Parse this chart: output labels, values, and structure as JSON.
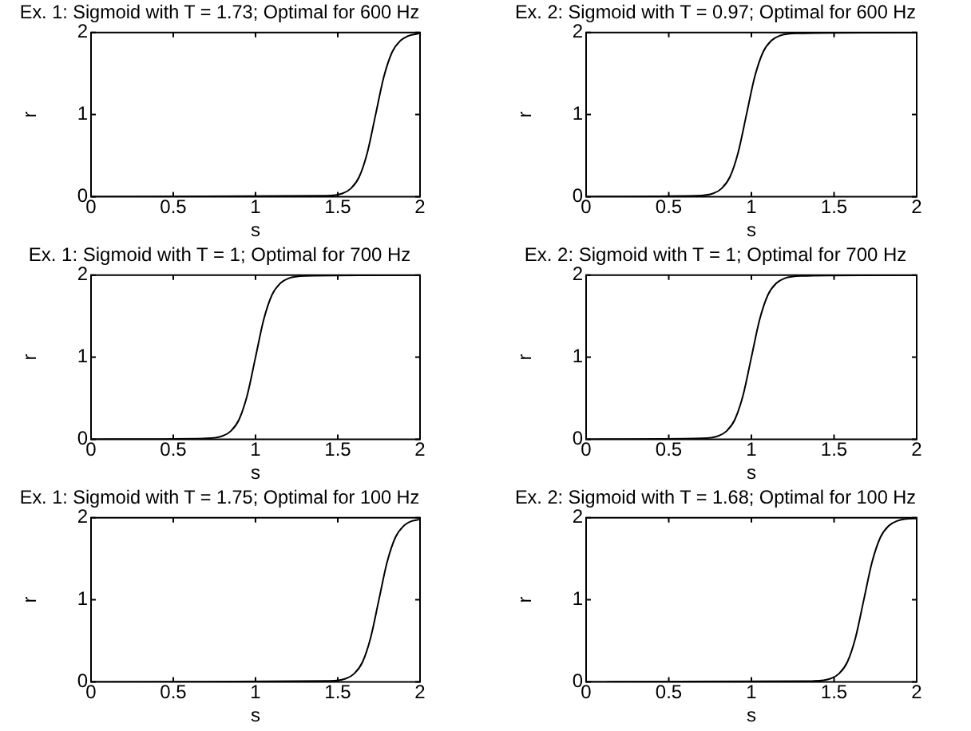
{
  "chart_data": [
    {
      "type": "line",
      "title": "Ex. 1: Sigmoid with T = 1.73; Optimal for 600 Hz",
      "xlabel": "s",
      "ylabel": "r",
      "xlim": [
        0,
        2
      ],
      "ylim": [
        0,
        2
      ],
      "xticks": [
        0,
        0.5,
        1,
        1.5,
        2
      ],
      "yticks": [
        0,
        1,
        2
      ],
      "series": [
        {
          "color": "#000000",
          "x": [
            0,
            1.43,
            1.53,
            1.58,
            1.63,
            1.68,
            1.73,
            1.78,
            1.83,
            1.88,
            1.93,
            2
          ],
          "values": [
            0,
            0.01,
            0.04,
            0.1,
            0.24,
            0.54,
            1,
            1.46,
            1.76,
            1.9,
            1.96,
            1.99
          ]
        }
      ]
    },
    {
      "type": "line",
      "title": "Ex. 2: Sigmoid with T = 0.97; Optimal for 600 Hz",
      "xlabel": "s",
      "ylabel": "r",
      "xlim": [
        0,
        2
      ],
      "ylim": [
        0,
        2
      ],
      "xticks": [
        0,
        0.5,
        1,
        1.5,
        2
      ],
      "yticks": [
        0,
        1,
        2
      ],
      "series": [
        {
          "color": "#000000",
          "x": [
            0,
            0.67,
            0.77,
            0.82,
            0.87,
            0.92,
            0.97,
            1.02,
            1.07,
            1.12,
            1.17,
            1.27,
            2
          ],
          "values": [
            0,
            0.01,
            0.04,
            0.1,
            0.24,
            0.54,
            1,
            1.46,
            1.76,
            1.9,
            1.96,
            1.99,
            2
          ]
        }
      ]
    },
    {
      "type": "line",
      "title": "Ex. 1: Sigmoid with T = 1; Optimal for 700 Hz",
      "xlabel": "s",
      "ylabel": "r",
      "xlim": [
        0,
        2
      ],
      "ylim": [
        0,
        2
      ],
      "xticks": [
        0,
        0.5,
        1,
        1.5,
        2
      ],
      "yticks": [
        0,
        1,
        2
      ],
      "series": [
        {
          "color": "#000000",
          "x": [
            0,
            0.7,
            0.8,
            0.85,
            0.9,
            0.95,
            1,
            1.05,
            1.1,
            1.15,
            1.2,
            1.3,
            2
          ],
          "values": [
            0,
            0.01,
            0.04,
            0.1,
            0.24,
            0.54,
            1,
            1.46,
            1.76,
            1.9,
            1.96,
            1.99,
            2
          ]
        }
      ]
    },
    {
      "type": "line",
      "title": "Ex. 2: Sigmoid with T = 1; Optimal for 700 Hz",
      "xlabel": "s",
      "ylabel": "r",
      "xlim": [
        0,
        2
      ],
      "ylim": [
        0,
        2
      ],
      "xticks": [
        0,
        0.5,
        1,
        1.5,
        2
      ],
      "yticks": [
        0,
        1,
        2
      ],
      "series": [
        {
          "color": "#000000",
          "x": [
            0,
            0.7,
            0.8,
            0.85,
            0.9,
            0.95,
            1,
            1.05,
            1.1,
            1.15,
            1.2,
            1.3,
            2
          ],
          "values": [
            0,
            0.01,
            0.04,
            0.1,
            0.24,
            0.54,
            1,
            1.46,
            1.76,
            1.9,
            1.96,
            1.99,
            2
          ]
        }
      ]
    },
    {
      "type": "line",
      "title": "Ex. 1: Sigmoid with T = 1.75; Optimal for 100 Hz",
      "xlabel": "s",
      "ylabel": "r",
      "xlim": [
        0,
        2
      ],
      "ylim": [
        0,
        2
      ],
      "xticks": [
        0,
        0.5,
        1,
        1.5,
        2
      ],
      "yticks": [
        0,
        1,
        2
      ],
      "series": [
        {
          "color": "#000000",
          "x": [
            0,
            1.45,
            1.55,
            1.6,
            1.65,
            1.7,
            1.75,
            1.8,
            1.85,
            1.9,
            1.95,
            2
          ],
          "values": [
            0,
            0.01,
            0.04,
            0.1,
            0.24,
            0.54,
            1,
            1.46,
            1.76,
            1.9,
            1.96,
            1.98
          ]
        }
      ]
    },
    {
      "type": "line",
      "title": "Ex. 2: Sigmoid with T = 1.68; Optimal for 100 Hz",
      "xlabel": "s",
      "ylabel": "r",
      "xlim": [
        0,
        2
      ],
      "ylim": [
        0,
        2
      ],
      "xticks": [
        0,
        0.5,
        1,
        1.5,
        2
      ],
      "yticks": [
        0,
        1,
        2
      ],
      "series": [
        {
          "color": "#000000",
          "x": [
            0,
            1.38,
            1.48,
            1.53,
            1.58,
            1.63,
            1.68,
            1.73,
            1.78,
            1.83,
            1.88,
            1.98,
            2
          ],
          "values": [
            0,
            0.01,
            0.04,
            0.1,
            0.24,
            0.54,
            1,
            1.46,
            1.76,
            1.9,
            1.96,
            1.99,
            1.99
          ]
        }
      ]
    }
  ]
}
